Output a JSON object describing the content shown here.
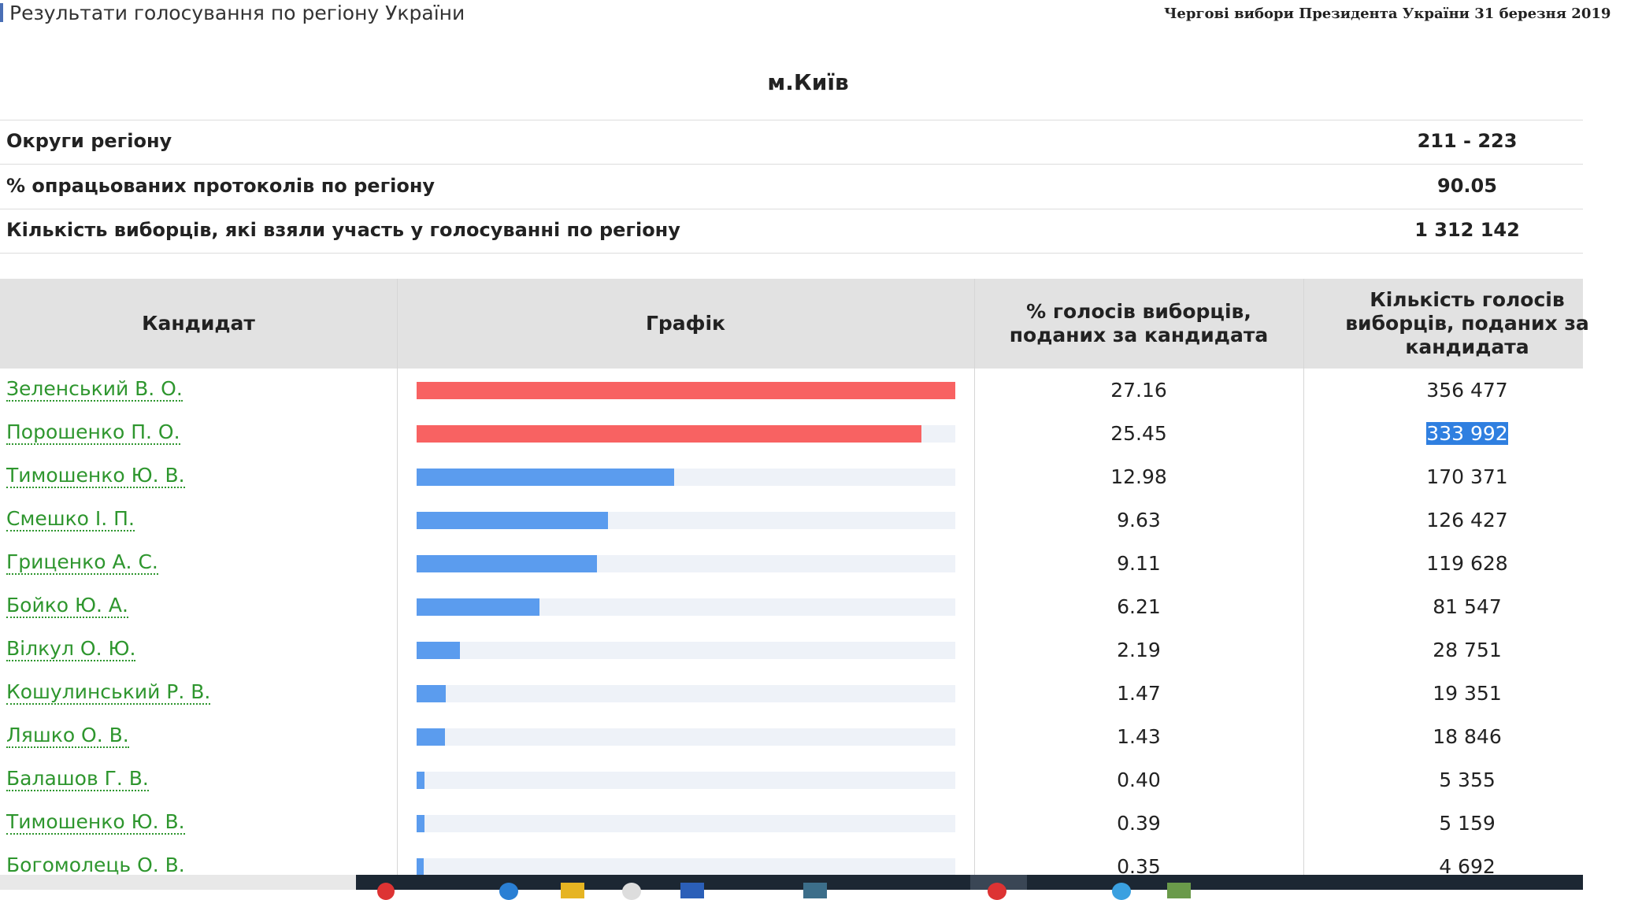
{
  "header": {
    "title": "Результати голосування по регіону України",
    "election": "Чергові вибори Президента України 31 березня 2019"
  },
  "region": "м.Київ",
  "summary": [
    {
      "label": "Округи регіону",
      "value": "211 - 223"
    },
    {
      "label": "% опрацьованих протоколів по регіону",
      "value": "90.05"
    },
    {
      "label": "Кількість виборців, які взяли участь у голосуванні по регіону",
      "value": "1 312 142"
    }
  ],
  "table": {
    "columns": [
      "Кандидат",
      "Графік",
      "% голосів виборців, поданих за кандидата",
      "Кількість голосів виборців, поданих за кандидата"
    ],
    "rows": [
      {
        "name": "Зеленський В. О.",
        "percent": "27.16",
        "votes": "356 477",
        "color": "#f86262"
      },
      {
        "name": "Порошенко П. О.",
        "percent": "25.45",
        "votes": "333 992",
        "color": "#f86262",
        "selected": true
      },
      {
        "name": "Тимошенко Ю. В.",
        "percent": "12.98",
        "votes": "170 371",
        "color": "#5b9cee"
      },
      {
        "name": "Смешко І. П.",
        "percent": "9.63",
        "votes": "126 427",
        "color": "#5b9cee"
      },
      {
        "name": "Гриценко А. С.",
        "percent": "9.11",
        "votes": "119 628",
        "color": "#5b9cee"
      },
      {
        "name": "Бойко Ю. А.",
        "percent": "6.21",
        "votes": "81 547",
        "color": "#5b9cee"
      },
      {
        "name": "Вілкул О. Ю.",
        "percent": "2.19",
        "votes": "28 751",
        "color": "#5b9cee"
      },
      {
        "name": "Кошулинський Р. В.",
        "percent": "1.47",
        "votes": "19 351",
        "color": "#5b9cee"
      },
      {
        "name": "Ляшко О. В.",
        "percent": "1.43",
        "votes": "18 846",
        "color": "#5b9cee"
      },
      {
        "name": "Балашов Г. В.",
        "percent": "0.40",
        "votes": "5 355",
        "color": "#5b9cee"
      },
      {
        "name": "Тимошенко Ю. В.",
        "percent": "0.39",
        "votes": "5 159",
        "color": "#5b9cee"
      },
      {
        "name": "Богомолець О. В.",
        "percent": "0.35",
        "votes": "4 692",
        "color": "#5b9cee"
      }
    ]
  }
}
